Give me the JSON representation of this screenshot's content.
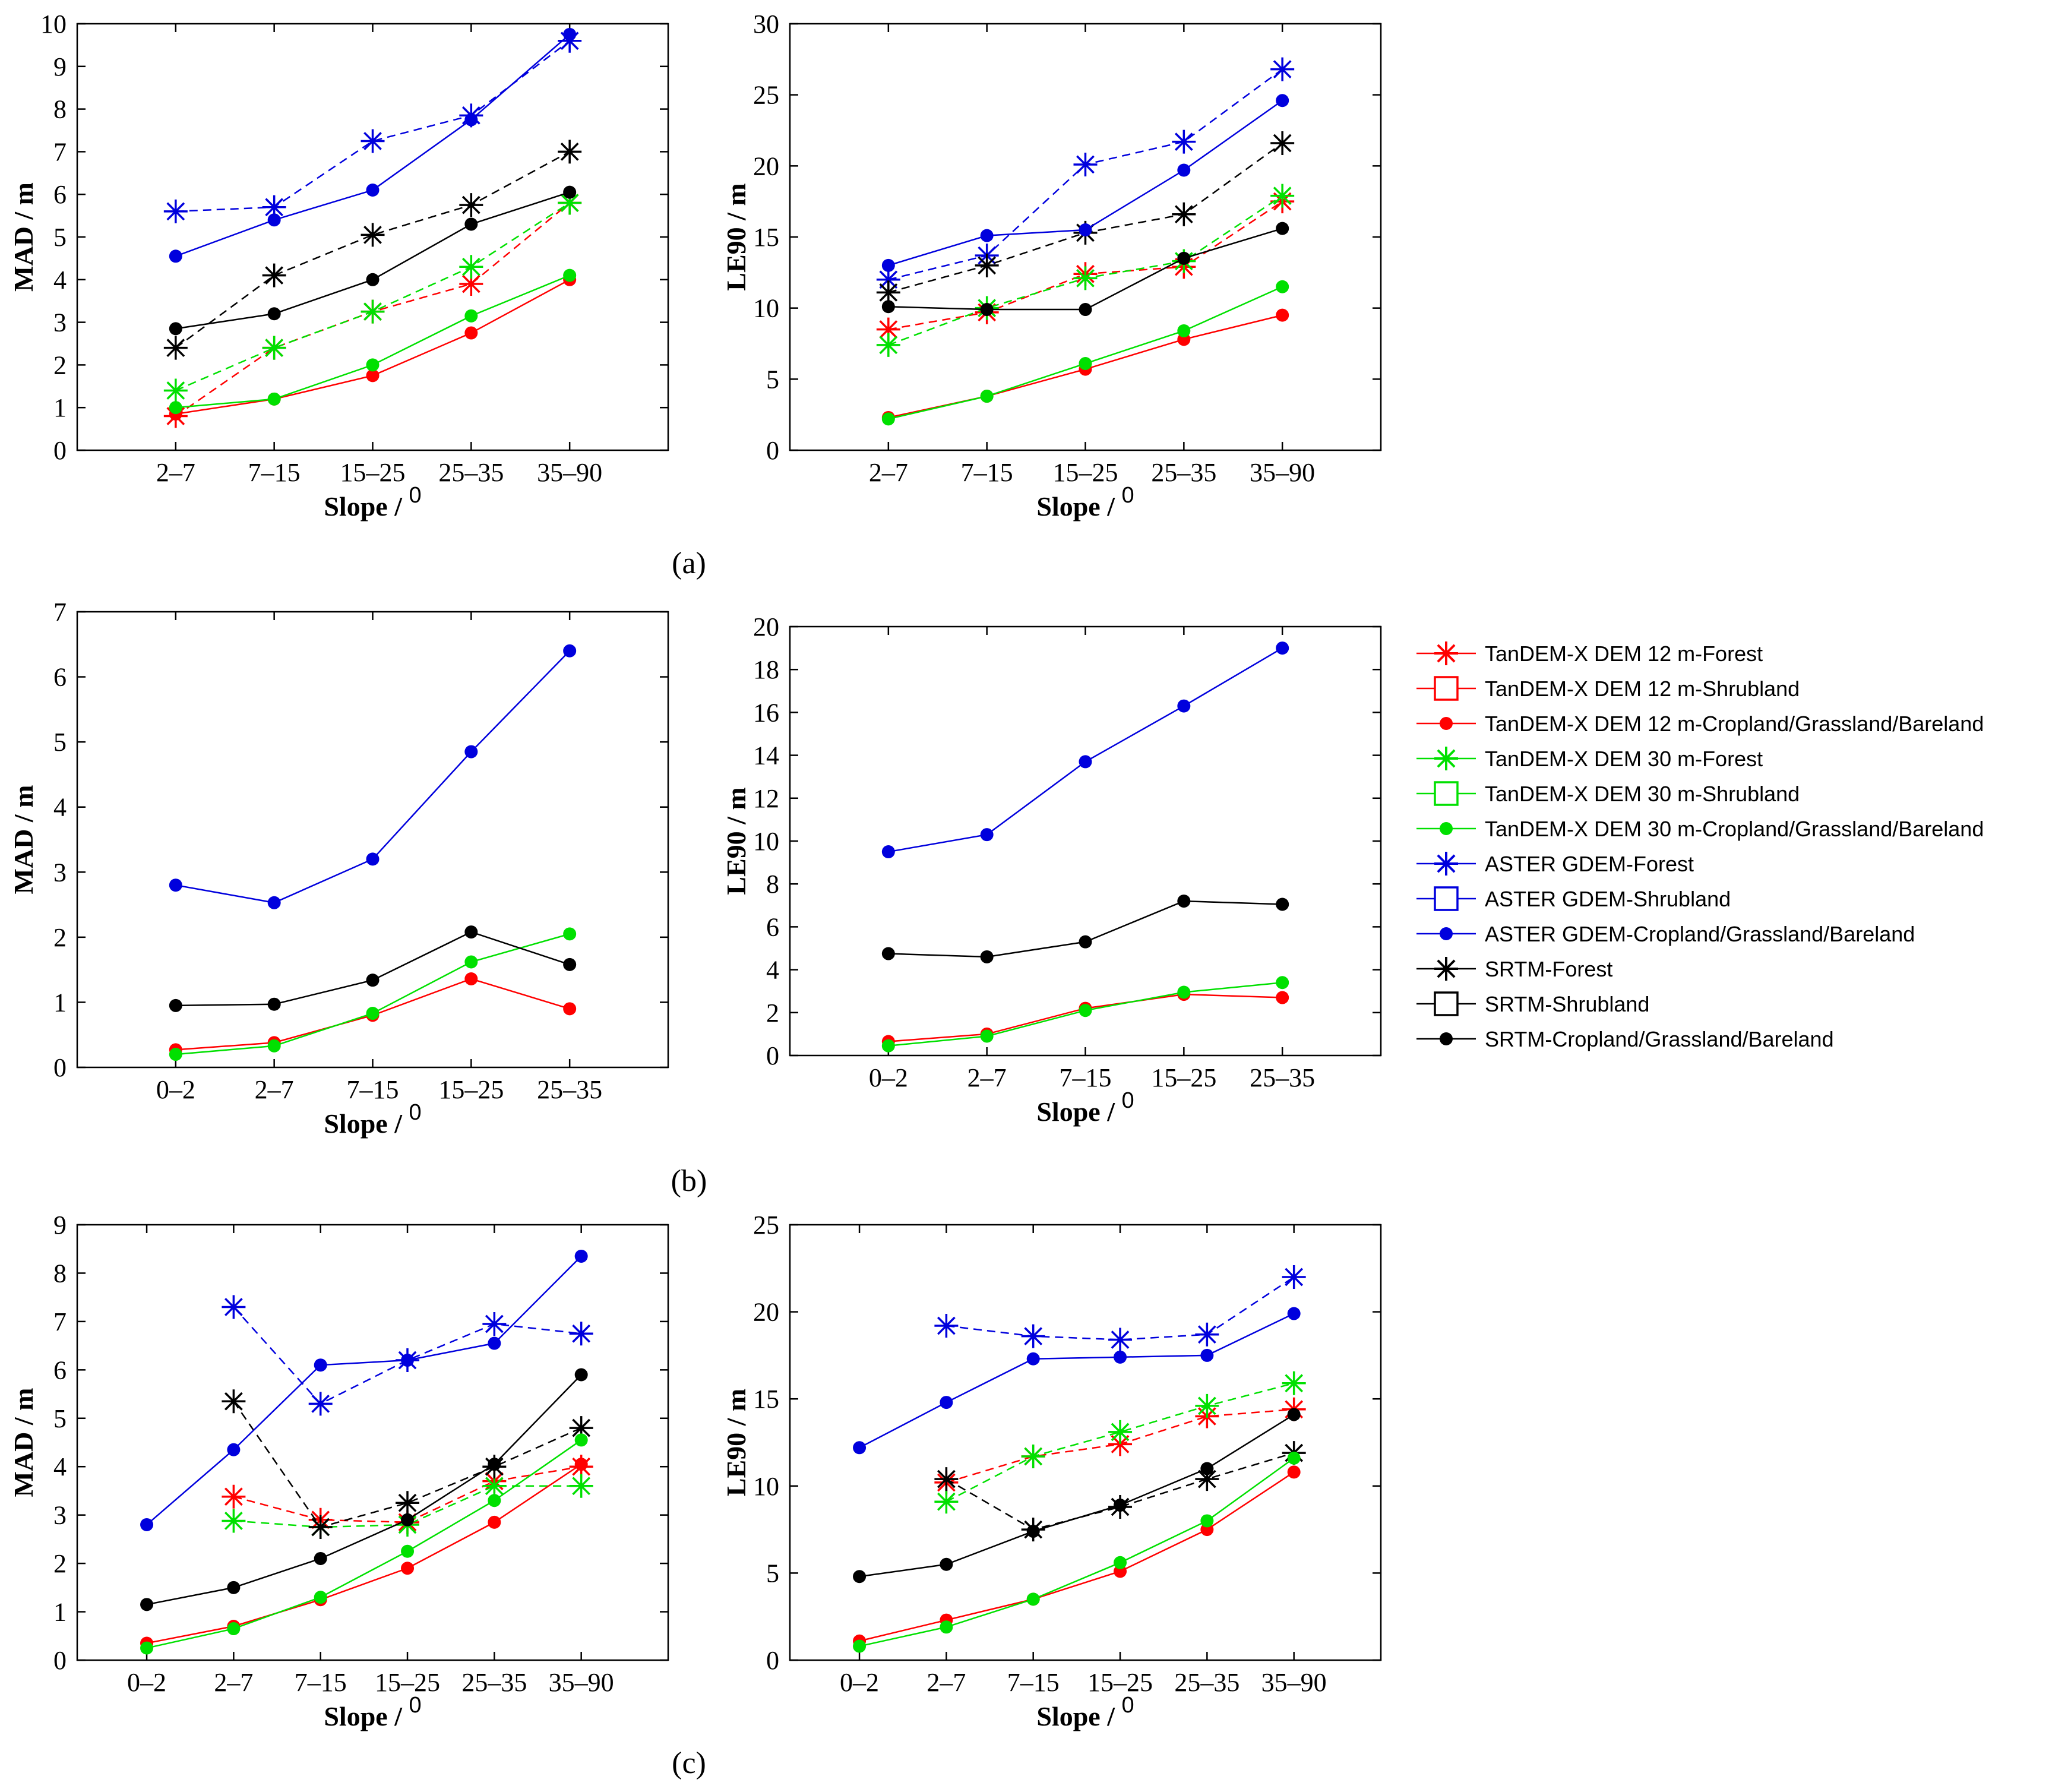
{
  "series_styles": {
    "TanDEM-X DEM 12 m": {
      "color": "#ff0000"
    },
    "TanDEM-X DEM 30 m": {
      "color": "#00e000"
    },
    "ASTER GDEM": {
      "color": "#0000dd"
    },
    "SRTM": {
      "color": "#000000"
    }
  },
  "legend": {
    "entries": [
      {
        "label": "TanDEM-X DEM 12 m-Forest",
        "color": "#ff0000",
        "marker": "star",
        "dashed": true
      },
      {
        "label": "TanDEM-X DEM 12 m-Shrubland",
        "color": "#ff0000",
        "marker": "square",
        "dashed": false
      },
      {
        "label": "TanDEM-X DEM 12 m-Cropland/Grassland/Bareland",
        "color": "#ff0000",
        "marker": "dot",
        "dashed": false
      },
      {
        "label": "TanDEM-X DEM 30 m-Forest",
        "color": "#00e000",
        "marker": "star",
        "dashed": true
      },
      {
        "label": "TanDEM-X DEM 30 m-Shrubland",
        "color": "#00e000",
        "marker": "square",
        "dashed": false
      },
      {
        "label": "TanDEM-X DEM 30 m-Cropland/Grassland/Bareland",
        "color": "#00e000",
        "marker": "dot",
        "dashed": false
      },
      {
        "label": "ASTER GDEM-Forest",
        "color": "#0000dd",
        "marker": "star",
        "dashed": true
      },
      {
        "label": "ASTER GDEM-Shrubland",
        "color": "#0000dd",
        "marker": "square",
        "dashed": false
      },
      {
        "label": "ASTER GDEM-Cropland/Grassland/Bareland",
        "color": "#0000dd",
        "marker": "dot",
        "dashed": false
      },
      {
        "label": "SRTM-Forest",
        "color": "#000000",
        "marker": "star",
        "dashed": true
      },
      {
        "label": "SRTM-Shrubland",
        "color": "#000000",
        "marker": "square",
        "dashed": false
      },
      {
        "label": "SRTM-Cropland/Grassland/Bareland",
        "color": "#000000",
        "marker": "dot",
        "dashed": false
      }
    ]
  },
  "panel_labels": [
    "(a)",
    "(b)",
    "(c)"
  ],
  "chart_data": [
    {
      "id": "a-mad",
      "panel": "(a)",
      "type": "line",
      "xlabel": "Slope / ",
      "xlabel_sup": "0",
      "ylabel": "MAD / m",
      "ylim": [
        0,
        10
      ],
      "yticks": [
        0,
        1,
        2,
        3,
        4,
        5,
        6,
        7,
        8,
        9,
        10
      ],
      "categories": [
        "2–7",
        "7–15",
        "15–25",
        "25–35",
        "35–90"
      ],
      "series": [
        {
          "name": "TanDEM-X DEM 12 m-Forest",
          "color": "#ff0000",
          "marker": "star",
          "dashed": true,
          "values": [
            0.8,
            2.4,
            3.25,
            3.9,
            5.8
          ]
        },
        {
          "name": "TanDEM-X DEM 30 m-Forest",
          "color": "#00e000",
          "marker": "star",
          "dashed": true,
          "values": [
            1.4,
            2.4,
            3.25,
            4.3,
            5.8
          ]
        },
        {
          "name": "ASTER GDEM-Forest",
          "color": "#0000dd",
          "marker": "star",
          "dashed": true,
          "values": [
            5.6,
            5.7,
            7.25,
            7.85,
            9.6
          ]
        },
        {
          "name": "SRTM-Forest",
          "color": "#000000",
          "marker": "star",
          "dashed": true,
          "values": [
            2.4,
            4.1,
            5.05,
            5.75,
            7.0
          ]
        },
        {
          "name": "TanDEM-X DEM 12 m-Cropland/Grassland/Bareland",
          "color": "#ff0000",
          "marker": "dot",
          "dashed": false,
          "values": [
            0.85,
            1.2,
            1.75,
            2.75,
            4.0
          ]
        },
        {
          "name": "TanDEM-X DEM 30 m-Cropland/Grassland/Bareland",
          "color": "#00e000",
          "marker": "dot",
          "dashed": false,
          "values": [
            1.0,
            1.2,
            2.0,
            3.15,
            4.1
          ]
        },
        {
          "name": "ASTER GDEM-Cropland/Grassland/Bareland",
          "color": "#0000dd",
          "marker": "dot",
          "dashed": false,
          "values": [
            4.55,
            5.4,
            6.1,
            7.75,
            9.75
          ]
        },
        {
          "name": "SRTM-Cropland/Grassland/Bareland",
          "color": "#000000",
          "marker": "dot",
          "dashed": false,
          "values": [
            2.85,
            3.2,
            4.0,
            5.3,
            6.05
          ]
        }
      ]
    },
    {
      "id": "a-le90",
      "panel": "(a)",
      "type": "line",
      "xlabel": "Slope / ",
      "xlabel_sup": "0",
      "ylabel": "LE90 / m",
      "ylim": [
        0,
        30
      ],
      "yticks": [
        0,
        5,
        10,
        15,
        20,
        25,
        30
      ],
      "categories": [
        "2–7",
        "7–15",
        "15–25",
        "25–35",
        "35–90"
      ],
      "series": [
        {
          "name": "TanDEM-X DEM 12 m-Forest",
          "color": "#ff0000",
          "marker": "star",
          "dashed": true,
          "values": [
            8.5,
            9.7,
            12.4,
            12.9,
            17.5
          ]
        },
        {
          "name": "TanDEM-X DEM 30 m-Forest",
          "color": "#00e000",
          "marker": "star",
          "dashed": true,
          "values": [
            7.4,
            10.0,
            12.1,
            13.3,
            17.9
          ]
        },
        {
          "name": "ASTER GDEM-Forest",
          "color": "#0000dd",
          "marker": "star",
          "dashed": true,
          "values": [
            12.0,
            13.7,
            20.1,
            21.7,
            26.8
          ]
        },
        {
          "name": "SRTM-Forest",
          "color": "#000000",
          "marker": "star",
          "dashed": true,
          "values": [
            11.1,
            13.0,
            15.3,
            16.6,
            21.6
          ]
        },
        {
          "name": "TanDEM-X DEM 12 m-Cropland/Grassland/Bareland",
          "color": "#ff0000",
          "marker": "dot",
          "dashed": false,
          "values": [
            2.3,
            3.8,
            5.7,
            7.8,
            9.5
          ]
        },
        {
          "name": "TanDEM-X DEM 30 m-Cropland/Grassland/Bareland",
          "color": "#00e000",
          "marker": "dot",
          "dashed": false,
          "values": [
            2.2,
            3.8,
            6.1,
            8.4,
            11.5
          ]
        },
        {
          "name": "ASTER GDEM-Cropland/Grassland/Bareland",
          "color": "#0000dd",
          "marker": "dot",
          "dashed": false,
          "values": [
            13.0,
            15.1,
            15.5,
            19.7,
            24.6
          ]
        },
        {
          "name": "SRTM-Cropland/Grassland/Bareland",
          "color": "#000000",
          "marker": "dot",
          "dashed": false,
          "values": [
            10.1,
            9.9,
            9.9,
            13.5,
            15.6
          ]
        }
      ]
    },
    {
      "id": "b-mad",
      "panel": "(b)",
      "type": "line",
      "xlabel": "Slope / ",
      "xlabel_sup": "0",
      "ylabel": "MAD / m",
      "ylim": [
        0,
        7
      ],
      "yticks": [
        0,
        1,
        2,
        3,
        4,
        5,
        6,
        7
      ],
      "categories": [
        "0–2",
        "2–7",
        "7–15",
        "15–25",
        "25–35"
      ],
      "series": [
        {
          "name": "TanDEM-X DEM 12 m-Cropland/Grassland/Bareland",
          "color": "#ff0000",
          "marker": "dot",
          "dashed": false,
          "values": [
            0.27,
            0.38,
            0.8,
            1.36,
            0.9
          ]
        },
        {
          "name": "TanDEM-X DEM 30 m-Cropland/Grassland/Bareland",
          "color": "#00e000",
          "marker": "dot",
          "dashed": false,
          "values": [
            0.2,
            0.33,
            0.83,
            1.62,
            2.05
          ]
        },
        {
          "name": "ASTER GDEM-Cropland/Grassland/Bareland",
          "color": "#0000dd",
          "marker": "dot",
          "dashed": false,
          "values": [
            2.8,
            2.53,
            3.2,
            4.85,
            6.4
          ]
        },
        {
          "name": "SRTM-Cropland/Grassland/Bareland",
          "color": "#000000",
          "marker": "dot",
          "dashed": false,
          "values": [
            0.95,
            0.97,
            1.34,
            2.08,
            1.58
          ]
        }
      ]
    },
    {
      "id": "b-le90",
      "panel": "(b)",
      "type": "line",
      "xlabel": "Slope / ",
      "xlabel_sup": "0",
      "ylabel": "LE90 / m",
      "ylim": [
        0,
        20
      ],
      "yticks": [
        0,
        2,
        4,
        6,
        8,
        10,
        12,
        14,
        16,
        18,
        20
      ],
      "categories": [
        "0–2",
        "2–7",
        "7–15",
        "15–25",
        "25–35"
      ],
      "series": [
        {
          "name": "TanDEM-X DEM 12 m-Cropland/Grassland/Bareland",
          "color": "#ff0000",
          "marker": "dot",
          "dashed": false,
          "values": [
            0.65,
            1.0,
            2.2,
            2.85,
            2.7
          ]
        },
        {
          "name": "TanDEM-X DEM 30 m-Cropland/Grassland/Bareland",
          "color": "#00e000",
          "marker": "dot",
          "dashed": false,
          "values": [
            0.45,
            0.9,
            2.1,
            2.95,
            3.4
          ]
        },
        {
          "name": "ASTER GDEM-Cropland/Grassland/Bareland",
          "color": "#0000dd",
          "marker": "dot",
          "dashed": false,
          "values": [
            9.5,
            10.3,
            13.7,
            16.3,
            19.0
          ]
        },
        {
          "name": "SRTM-Cropland/Grassland/Bareland",
          "color": "#000000",
          "marker": "dot",
          "dashed": false,
          "values": [
            4.75,
            4.6,
            5.3,
            7.2,
            7.05
          ]
        }
      ]
    },
    {
      "id": "c-mad",
      "panel": "(c)",
      "type": "line",
      "xlabel": "Slope / ",
      "xlabel_sup": "0",
      "ylabel": "MAD / m",
      "ylim": [
        0,
        9
      ],
      "yticks": [
        0,
        1,
        2,
        3,
        4,
        5,
        6,
        7,
        8,
        9
      ],
      "categories": [
        "0–2",
        "2–7",
        "7–15",
        "15–25",
        "25–35",
        "35–90"
      ],
      "series": [
        {
          "name": "TanDEM-X DEM 12 m-Forest",
          "color": "#ff0000",
          "marker": "star",
          "dashed": true,
          "values": [
            null,
            3.38,
            2.9,
            2.85,
            3.7,
            4.0
          ]
        },
        {
          "name": "TanDEM-X DEM 30 m-Forest",
          "color": "#00e000",
          "marker": "star",
          "dashed": true,
          "values": [
            null,
            2.88,
            2.75,
            2.8,
            3.6,
            3.6
          ]
        },
        {
          "name": "ASTER GDEM-Forest",
          "color": "#0000dd",
          "marker": "star",
          "dashed": true,
          "values": [
            null,
            7.3,
            5.3,
            6.2,
            6.95,
            6.75
          ]
        },
        {
          "name": "SRTM-Forest",
          "color": "#000000",
          "marker": "star",
          "dashed": true,
          "values": [
            null,
            5.35,
            2.75,
            3.25,
            4.0,
            4.8
          ]
        },
        {
          "name": "TanDEM-X DEM 12 m-Cropland/Grassland/Bareland",
          "color": "#ff0000",
          "marker": "dot",
          "dashed": false,
          "values": [
            0.35,
            0.7,
            1.25,
            1.9,
            2.85,
            4.05
          ]
        },
        {
          "name": "TanDEM-X DEM 30 m-Cropland/Grassland/Bareland",
          "color": "#00e000",
          "marker": "dot",
          "dashed": false,
          "values": [
            0.25,
            0.65,
            1.3,
            2.25,
            3.3,
            4.55
          ]
        },
        {
          "name": "ASTER GDEM-Cropland/Grassland/Bareland",
          "color": "#0000dd",
          "marker": "dot",
          "dashed": false,
          "values": [
            2.8,
            4.35,
            6.1,
            6.2,
            6.55,
            8.35
          ]
        },
        {
          "name": "SRTM-Cropland/Grassland/Bareland",
          "color": "#000000",
          "marker": "dot",
          "dashed": false,
          "values": [
            1.15,
            1.5,
            2.1,
            2.9,
            4.05,
            5.9
          ]
        }
      ]
    },
    {
      "id": "c-le90",
      "panel": "(c)",
      "type": "line",
      "xlabel": "Slope / ",
      "xlabel_sup": "0",
      "ylabel": "LE90 / m",
      "ylim": [
        0,
        25
      ],
      "yticks": [
        0,
        5,
        10,
        15,
        20,
        25
      ],
      "categories": [
        "0–2",
        "2–7",
        "7–15",
        "15–25",
        "25–35",
        "35–90"
      ],
      "series": [
        {
          "name": "TanDEM-X DEM 12 m-Forest",
          "color": "#ff0000",
          "marker": "star",
          "dashed": true,
          "values": [
            null,
            10.2,
            11.7,
            12.4,
            14.0,
            14.4
          ]
        },
        {
          "name": "TanDEM-X DEM 30 m-Forest",
          "color": "#00e000",
          "marker": "star",
          "dashed": true,
          "values": [
            null,
            9.1,
            11.7,
            13.1,
            14.6,
            15.9
          ]
        },
        {
          "name": "ASTER GDEM-Forest",
          "color": "#0000dd",
          "marker": "star",
          "dashed": true,
          "values": [
            null,
            19.2,
            18.6,
            18.4,
            18.7,
            22.0
          ]
        },
        {
          "name": "SRTM-Forest",
          "color": "#000000",
          "marker": "star",
          "dashed": true,
          "values": [
            null,
            10.4,
            7.5,
            8.8,
            10.4,
            11.9
          ]
        },
        {
          "name": "TanDEM-X DEM 12 m-Cropland/Grassland/Bareland",
          "color": "#ff0000",
          "marker": "dot",
          "dashed": false,
          "values": [
            1.1,
            2.3,
            3.5,
            5.1,
            7.5,
            10.8
          ]
        },
        {
          "name": "TanDEM-X DEM 30 m-Cropland/Grassland/Bareland",
          "color": "#00e000",
          "marker": "dot",
          "dashed": false,
          "values": [
            0.8,
            1.9,
            3.5,
            5.6,
            8.0,
            11.6
          ]
        },
        {
          "name": "ASTER GDEM-Cropland/Grassland/Bareland",
          "color": "#0000dd",
          "marker": "dot",
          "dashed": false,
          "values": [
            12.2,
            14.8,
            17.3,
            17.4,
            17.5,
            19.9
          ]
        },
        {
          "name": "SRTM-Cropland/Grassland/Bareland",
          "color": "#000000",
          "marker": "dot",
          "dashed": false,
          "values": [
            4.8,
            5.5,
            7.4,
            8.9,
            11.0,
            14.1
          ]
        }
      ]
    }
  ]
}
